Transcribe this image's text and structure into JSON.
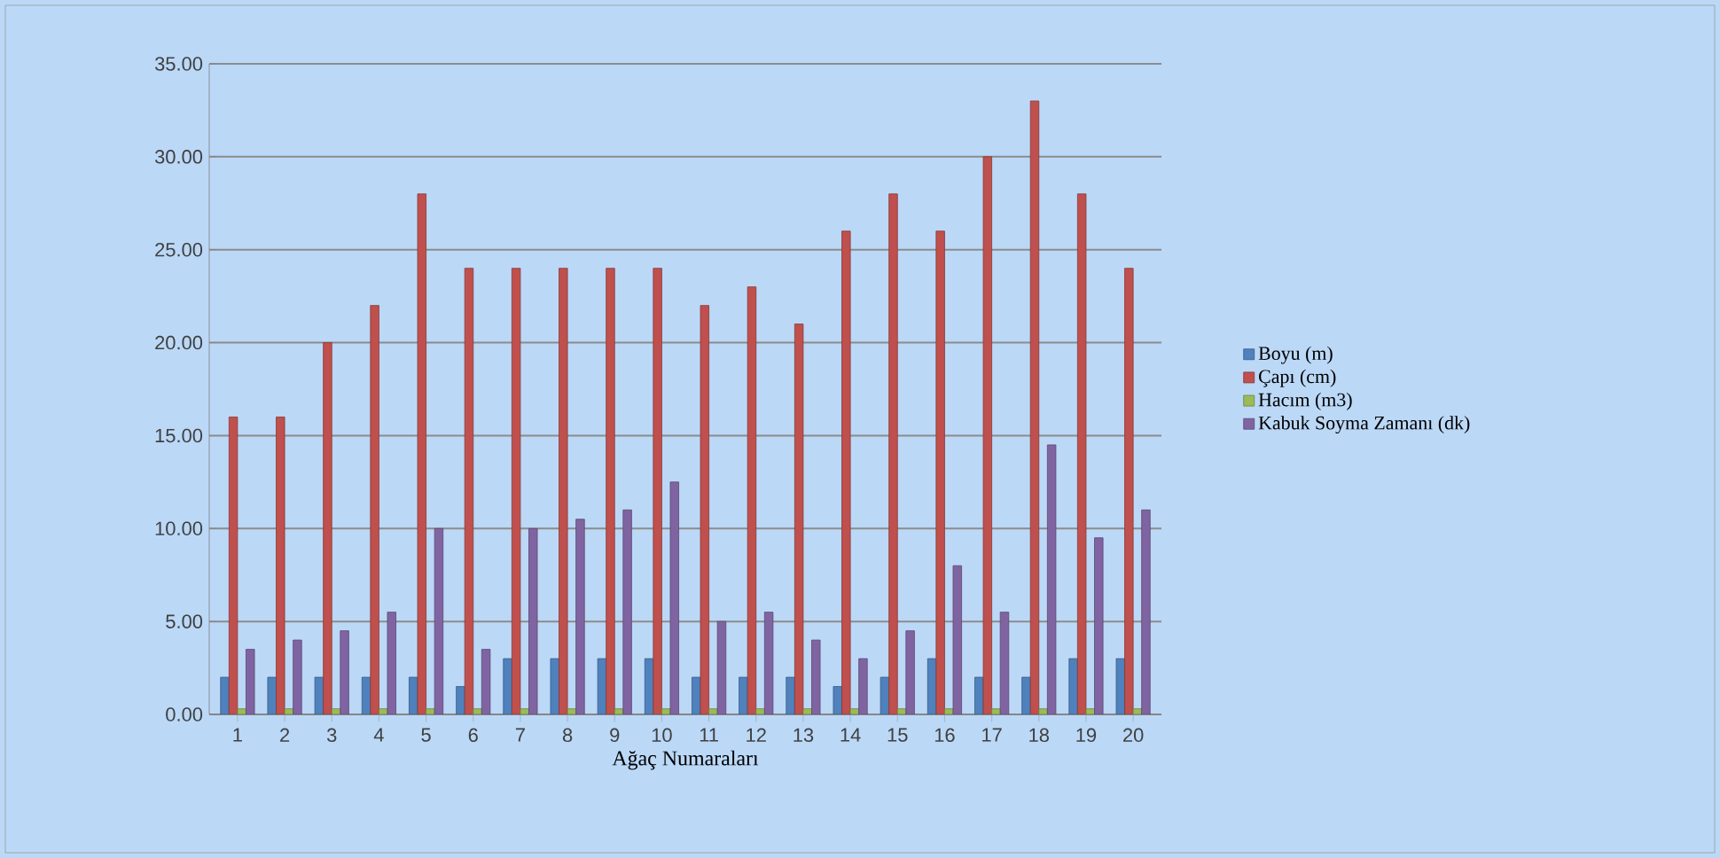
{
  "chart_data": {
    "type": "bar",
    "xlabel": "Ağaç Numaraları",
    "categories": [
      "1",
      "2",
      "3",
      "4",
      "5",
      "6",
      "7",
      "8",
      "9",
      "10",
      "11",
      "12",
      "13",
      "14",
      "15",
      "16",
      "17",
      "18",
      "19",
      "20"
    ],
    "series": [
      {
        "name": "Boyu (m)",
        "color": "#4f81bd",
        "values": [
          2,
          2,
          2,
          2,
          2,
          1.5,
          3,
          3,
          3,
          3,
          2,
          2,
          2,
          1.5,
          2,
          3,
          2,
          2,
          3,
          3
        ]
      },
      {
        "name": "Çapı (cm)",
        "color": "#c0504d",
        "values": [
          16,
          16,
          20,
          22,
          28,
          24,
          24,
          24,
          24,
          24,
          22,
          23,
          21,
          26,
          28,
          26,
          30,
          33,
          28,
          24
        ]
      },
      {
        "name": "Hacım (m3)",
        "color": "#9bbb59",
        "values": [
          0.3,
          0.3,
          0.3,
          0.3,
          0.3,
          0.3,
          0.3,
          0.3,
          0.3,
          0.3,
          0.3,
          0.3,
          0.3,
          0.3,
          0.3,
          0.3,
          0.3,
          0.3,
          0.3,
          0.3
        ]
      },
      {
        "name": "Kabuk Soyma Zamanı (dk)",
        "color": "#8064a2",
        "values": [
          3.5,
          4,
          4.5,
          5.5,
          10,
          3.5,
          10,
          10.5,
          11,
          12.5,
          5,
          5.5,
          4,
          3,
          4.5,
          8,
          5.5,
          14.5,
          9.5,
          11
        ]
      }
    ],
    "ylim": [
      0,
      35
    ],
    "yticks": [
      {
        "value": 0,
        "label": "0.00"
      },
      {
        "value": 5,
        "label": "5.00"
      },
      {
        "value": 10,
        "label": "10.00"
      },
      {
        "value": 15,
        "label": "15.00"
      },
      {
        "value": 20,
        "label": "20.00"
      },
      {
        "value": 25,
        "label": "25.00"
      },
      {
        "value": 30,
        "label": "30.00"
      },
      {
        "value": 35,
        "label": "35.00"
      }
    ],
    "grid": "y",
    "legend": "right"
  }
}
